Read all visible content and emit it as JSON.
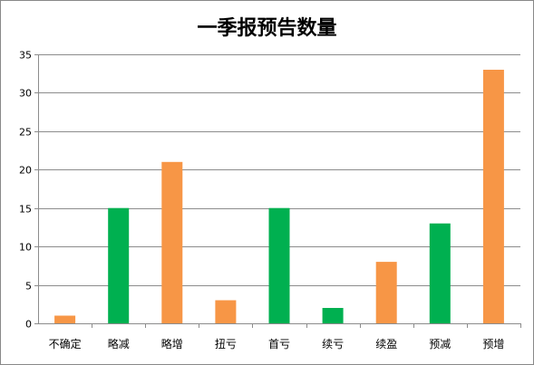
{
  "chart_data": {
    "type": "bar",
    "title": "一季报预告数量",
    "xlabel": "",
    "ylabel": "",
    "categories": [
      "不确定",
      "略减",
      "略增",
      "扭亏",
      "首亏",
      "续亏",
      "续盈",
      "预减",
      "预增"
    ],
    "values": [
      1,
      15,
      21,
      3,
      15,
      2,
      8,
      13,
      33
    ],
    "bar_colors": [
      "#f79646",
      "#00b050",
      "#f79646",
      "#f79646",
      "#00b050",
      "#00b050",
      "#f79646",
      "#00b050",
      "#f79646"
    ],
    "ylim": [
      0,
      35
    ],
    "yticks": [
      0,
      5,
      10,
      15,
      20,
      25,
      30,
      35
    ],
    "grid": true,
    "legend": "none"
  }
}
